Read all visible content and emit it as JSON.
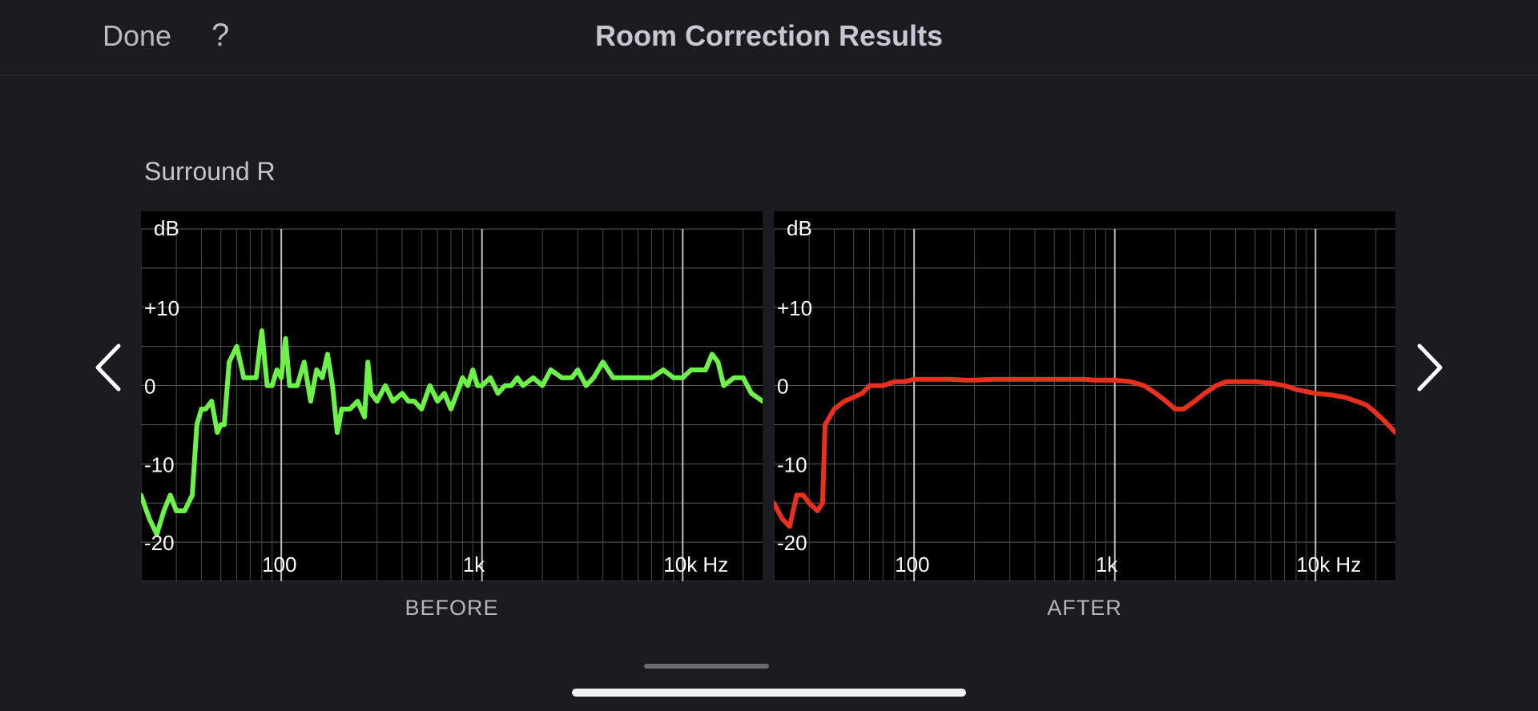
{
  "header": {
    "done_label": "Done",
    "help_label": "?",
    "title": "Room Correction Results"
  },
  "speaker": {
    "name": "Surround R"
  },
  "captions": {
    "before": "BEFORE",
    "after": "AFTER"
  },
  "icons": {
    "prev": "chevron-left-icon",
    "next": "chevron-right-icon"
  },
  "chart_data": [
    {
      "type": "line",
      "caption": "BEFORE",
      "xscale": "log",
      "xlim": [
        20,
        25000
      ],
      "ylim": [
        -25,
        20
      ],
      "y_axis_unit": "dB",
      "x_ticks": [
        {
          "value": 100,
          "label": "100"
        },
        {
          "value": 1000,
          "label": "1k"
        },
        {
          "value": 10000,
          "label": "10k Hz"
        }
      ],
      "y_ticks": [
        {
          "value": 10,
          "label": "+10"
        },
        {
          "value": 0,
          "label": "0"
        },
        {
          "value": -10,
          "label": "-10"
        },
        {
          "value": -20,
          "label": "-20"
        }
      ],
      "grid": true,
      "series": [
        {
          "color": "#6df24a",
          "x": [
            20,
            22,
            24,
            26,
            28,
            30,
            33,
            36,
            38,
            40,
            42,
            45,
            48,
            50,
            52,
            55,
            60,
            65,
            70,
            75,
            80,
            85,
            90,
            95,
            100,
            105,
            110,
            120,
            130,
            140,
            150,
            160,
            170,
            180,
            190,
            200,
            220,
            240,
            260,
            270,
            280,
            300,
            330,
            360,
            400,
            430,
            460,
            500,
            550,
            600,
            650,
            700,
            750,
            800,
            850,
            900,
            950,
            1000,
            1100,
            1200,
            1300,
            1400,
            1500,
            1600,
            1800,
            2000,
            2200,
            2500,
            2800,
            3000,
            3300,
            3600,
            4000,
            4500,
            5000,
            5500,
            6000,
            7000,
            8000,
            9000,
            10000,
            11000,
            12000,
            13000,
            14000,
            15000,
            16000,
            18000,
            20000,
            22000,
            25000
          ],
          "y": [
            -14,
            -17,
            -19,
            -16,
            -14,
            -16,
            -16,
            -14,
            -5,
            -3,
            -3,
            -2,
            -6,
            -5,
            -5,
            3,
            5,
            1,
            1,
            1,
            7,
            0,
            0,
            2,
            1,
            6,
            0,
            0,
            3,
            -2,
            2,
            1,
            4,
            0,
            -6,
            -3,
            -3,
            -2,
            -4,
            3,
            -1,
            -2,
            0,
            -2,
            -1,
            -2,
            -2,
            -3,
            0,
            -2,
            -1,
            -3,
            -1,
            1,
            0,
            2,
            0,
            0,
            1,
            -1,
            0,
            0,
            1,
            0,
            1,
            0,
            2,
            1,
            1,
            2,
            0,
            1,
            3,
            1,
            1,
            1,
            1,
            1,
            2,
            1,
            1,
            2,
            2,
            2,
            4,
            3,
            0,
            1,
            1,
            -1,
            -2
          ]
        }
      ]
    },
    {
      "type": "line",
      "caption": "AFTER",
      "xscale": "log",
      "xlim": [
        20,
        25000
      ],
      "ylim": [
        -25,
        20
      ],
      "y_axis_unit": "dB",
      "x_ticks": [
        {
          "value": 100,
          "label": "100"
        },
        {
          "value": 1000,
          "label": "1k"
        },
        {
          "value": 10000,
          "label": "10k Hz"
        }
      ],
      "y_ticks": [
        {
          "value": 10,
          "label": "+10"
        },
        {
          "value": 0,
          "label": "0"
        },
        {
          "value": -10,
          "label": "-10"
        },
        {
          "value": -20,
          "label": "-20"
        }
      ],
      "grid": true,
      "series": [
        {
          "color": "#e8301f",
          "x": [
            20,
            22,
            24,
            26,
            28,
            30,
            33,
            35,
            36,
            38,
            40,
            45,
            50,
            55,
            60,
            70,
            80,
            90,
            100,
            120,
            150,
            180,
            200,
            250,
            300,
            400,
            500,
            600,
            700,
            800,
            1000,
            1200,
            1400,
            1600,
            1800,
            2000,
            2200,
            2500,
            2800,
            3200,
            3600,
            4000,
            4500,
            5000,
            6000,
            7000,
            8000,
            10000,
            12000,
            14000,
            16000,
            18000,
            20000,
            22000,
            25000
          ],
          "y": [
            -15,
            -17,
            -18,
            -14,
            -14,
            -15,
            -16,
            -15,
            -5,
            -4,
            -3,
            -2,
            -1.5,
            -1,
            0,
            0,
            0.5,
            0.5,
            0.8,
            0.8,
            0.8,
            0.7,
            0.7,
            0.8,
            0.8,
            0.8,
            0.8,
            0.8,
            0.8,
            0.7,
            0.7,
            0.5,
            0,
            -1,
            -2,
            -3,
            -3,
            -2,
            -1,
            0,
            0.5,
            0.5,
            0.5,
            0.5,
            0.3,
            0,
            -0.5,
            -1,
            -1.2,
            -1.5,
            -2,
            -2.5,
            -3.5,
            -4.5,
            -6
          ]
        }
      ]
    }
  ]
}
